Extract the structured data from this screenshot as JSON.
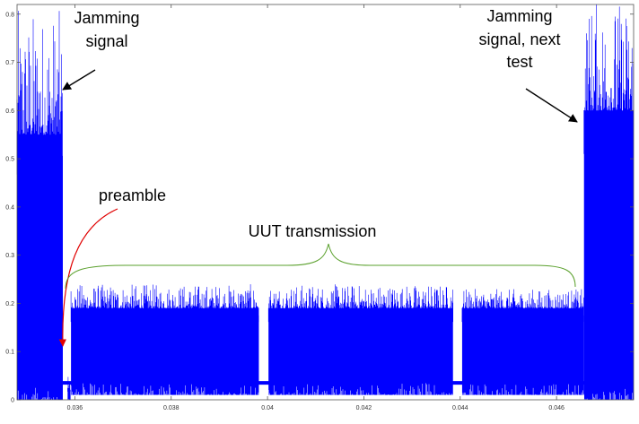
{
  "chart_data": {
    "type": "area",
    "title": "",
    "xlabel": "",
    "ylabel": "",
    "xlim": [
      0.0348,
      0.0476
    ],
    "ylim": [
      0,
      0.82
    ],
    "grid": false,
    "legend": "none",
    "series_color": "#0000ff",
    "x_ticks": [
      {
        "value": 0.036,
        "label": "0.036"
      },
      {
        "value": 0.038,
        "label": "0.038"
      },
      {
        "value": 0.04,
        "label": "0.04"
      },
      {
        "value": 0.042,
        "label": "0.042"
      },
      {
        "value": 0.044,
        "label": "0.044"
      },
      {
        "value": 0.046,
        "label": "0.046"
      }
    ],
    "y_ticks": [
      {
        "value": 0,
        "label": "0"
      },
      {
        "value": 0.1,
        "label": "0.1"
      },
      {
        "value": 0.2,
        "label": "0.2"
      },
      {
        "value": 0.3,
        "label": "0.3"
      },
      {
        "value": 0.4,
        "label": "0.4"
      },
      {
        "value": 0.5,
        "label": "0.5"
      },
      {
        "value": 0.6,
        "label": "0.6"
      },
      {
        "value": 0.7,
        "label": "0.7"
      },
      {
        "value": 0.8,
        "label": "0.8"
      }
    ],
    "segments": [
      {
        "name": "jamming",
        "x_start": 0.0348,
        "x_end": 0.03575,
        "floor": 0.0,
        "peak_low": 0.55,
        "peak_high": 0.81
      },
      {
        "name": "preamble",
        "x_start": 0.03585,
        "x_end": 0.03591,
        "floor": 0.0,
        "peak_low": 0.02,
        "peak_high": 0.05
      },
      {
        "name": "uut-1",
        "x_start": 0.03592,
        "x_end": 0.03982,
        "floor": 0.01,
        "peak_low": 0.19,
        "peak_high": 0.24
      },
      {
        "name": "uut-2",
        "x_start": 0.04002,
        "x_end": 0.04385,
        "floor": 0.01,
        "peak_low": 0.19,
        "peak_high": 0.24
      },
      {
        "name": "uut-3",
        "x_start": 0.04404,
        "x_end": 0.04657,
        "floor": 0.01,
        "peak_low": 0.19,
        "peak_high": 0.23
      },
      {
        "name": "jamming-next",
        "x_start": 0.04657,
        "x_end": 0.0476,
        "floor": 0.0,
        "peak_low": 0.6,
        "peak_high": 0.83
      }
    ],
    "baseline": {
      "y": 0.035,
      "x_start": 0.03575,
      "x_end": 0.0466
    },
    "annotations": [
      {
        "id": "jamming",
        "lines": [
          "Jamming",
          "signal"
        ],
        "color": "#000000"
      },
      {
        "id": "jamming-next",
        "lines": [
          "Jamming",
          "signal, next",
          "test"
        ],
        "color": "#000000"
      },
      {
        "id": "preamble",
        "lines": [
          "preamble"
        ],
        "color": "#000000",
        "arrow_color": "#e00000"
      },
      {
        "id": "uut",
        "lines": [
          "UUT transmission"
        ],
        "color": "#000000",
        "brace_color": "#5aa02c"
      }
    ]
  }
}
